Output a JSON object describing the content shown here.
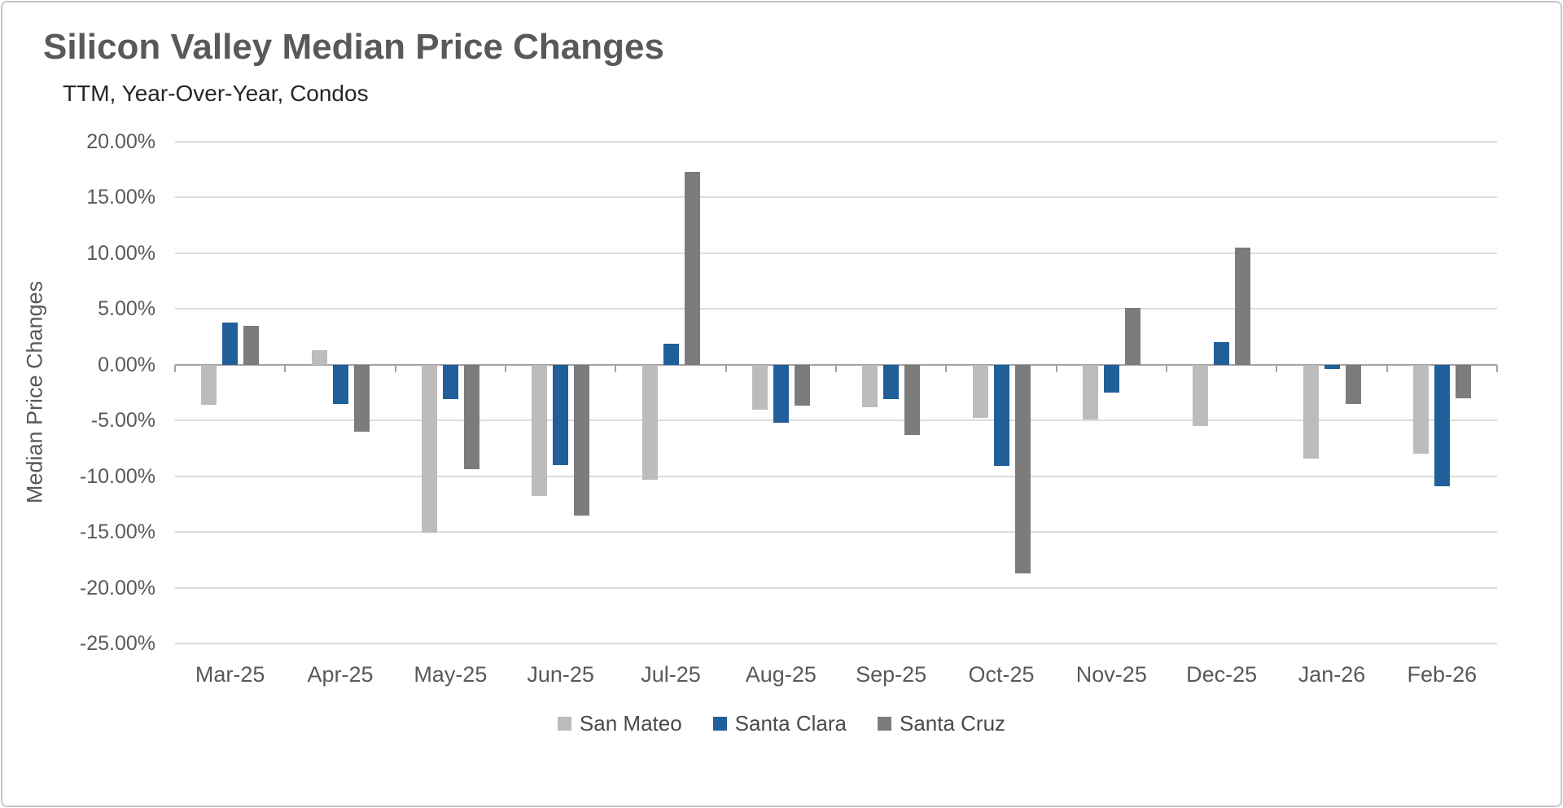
{
  "chart_data": {
    "type": "bar",
    "title": "Silicon Valley Median Price Changes",
    "subtitle": "TTM, Year-Over-Year, Condos",
    "ylabel": "Median Price Changes",
    "xlabel": "",
    "unit": "%",
    "categories": [
      "Mar-25",
      "Apr-25",
      "May-25",
      "Jun-25",
      "Jul-25",
      "Aug-25",
      "Sep-25",
      "Oct-25",
      "Nov-25",
      "Dec-25",
      "Jan-26",
      "Feb-26"
    ],
    "series": [
      {
        "name": "San Mateo",
        "color": "#bcbcbc",
        "values": [
          -3.6,
          1.3,
          -15.1,
          -11.8,
          -10.3,
          -4.0,
          -3.8,
          -4.8,
          -4.9,
          -5.5,
          -8.4,
          -8.0
        ]
      },
      {
        "name": "Santa Clara",
        "color": "#215f9a",
        "values": [
          3.8,
          -3.5,
          -3.1,
          -9.0,
          1.9,
          -5.2,
          -3.1,
          -9.1,
          -2.5,
          2.0,
          -0.4,
          -10.9
        ]
      },
      {
        "name": "Santa Cruz",
        "color": "#7c7c7c",
        "values": [
          3.5,
          -6.0,
          -9.4,
          -13.5,
          17.3,
          -3.7,
          -6.3,
          -18.7,
          5.1,
          10.5,
          -3.5,
          -3.0
        ]
      }
    ],
    "ylim": [
      -25,
      20
    ],
    "ytick_step": 5,
    "ytick_labels": [
      "20.00%",
      "15.00%",
      "10.00%",
      "5.00%",
      "0.00%",
      "-5.00%",
      "-10.00%",
      "-15.00%",
      "-20.00%",
      "-25.00%"
    ],
    "grid": true,
    "gridline_color": "#dcdcdc",
    "axis_color": "#a3a3a3",
    "legend_position": "bottom"
  }
}
